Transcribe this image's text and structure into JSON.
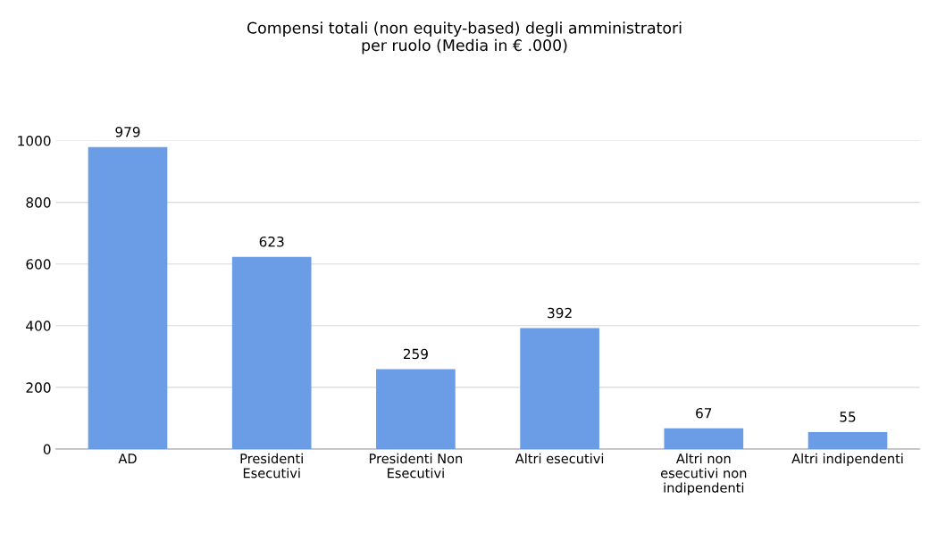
{
  "chart_data": {
    "type": "bar",
    "title": "Compensi totali (non equity-based) degli amministratori\nper ruolo (Media in € .000)",
    "categories": [
      "AD",
      "Presidenti\nEsecutivi",
      "Presidenti Non\nEsecutivi",
      "Altri esecutivi",
      "Altri non\nesecutivi non\nindipendenti",
      "Altri indipendenti"
    ],
    "values": [
      979,
      623,
      259,
      392,
      67,
      55
    ],
    "color": "#6a9de6",
    "ylim": [
      0,
      1000
    ],
    "yticks": [
      0,
      200,
      400,
      600,
      800,
      1000
    ],
    "grid": "y",
    "data_labels": true,
    "legend": false
  }
}
